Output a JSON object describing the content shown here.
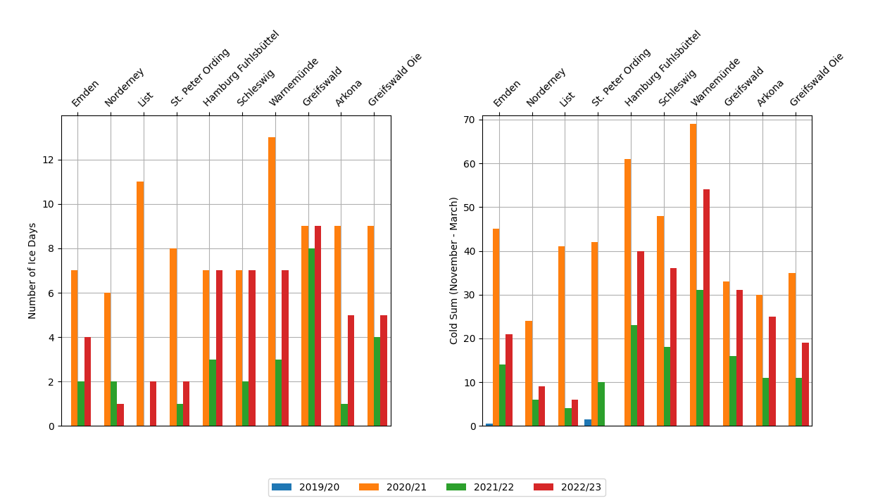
{
  "chart_data": [
    {
      "type": "bar",
      "categories": [
        "Emden",
        "Norderney",
        "List",
        "St. Peter Ording",
        "Hamburg Fuhlsbüttel",
        "Schleswig",
        "Warnemünde",
        "Greifswald",
        "Arkona",
        "Greifswald Oie"
      ],
      "series": [
        {
          "name": "2019/20",
          "values": [
            0,
            0,
            0,
            0,
            0,
            0,
            0,
            0,
            0,
            0
          ]
        },
        {
          "name": "2020/21",
          "values": [
            7,
            6,
            11,
            8,
            7,
            7,
            13,
            9,
            9,
            9
          ]
        },
        {
          "name": "2021/22",
          "values": [
            2,
            2,
            0,
            1,
            3,
            2,
            3,
            8,
            1,
            4
          ]
        },
        {
          "name": "2022/23",
          "values": [
            4,
            1,
            2,
            2,
            7,
            7,
            7,
            9,
            5,
            5
          ]
        }
      ],
      "ylabel": "Number of Ice Days",
      "ylim": [
        0,
        14
      ],
      "yticks": [
        0,
        2,
        4,
        6,
        8,
        10,
        12
      ],
      "grid": true,
      "legend": "lower center"
    },
    {
      "type": "bar",
      "categories": [
        "Emden",
        "Norderney",
        "List",
        "St. Peter Ording",
        "Hamburg Fuhlsbüttel",
        "Schleswig",
        "Warnemünde",
        "Greifswald",
        "Arkona",
        "Greifswald Oie"
      ],
      "series": [
        {
          "name": "2019/20",
          "values": [
            0.5,
            0,
            0,
            1.5,
            0,
            0,
            0,
            0,
            0,
            0
          ]
        },
        {
          "name": "2020/21",
          "values": [
            45,
            24,
            41,
            42,
            61,
            48,
            69,
            33,
            30,
            35
          ]
        },
        {
          "name": "2021/22",
          "values": [
            14,
            6,
            4,
            10,
            23,
            18,
            31,
            16,
            11,
            11
          ]
        },
        {
          "name": "2022/23",
          "values": [
            21,
            9,
            6,
            0,
            40,
            36,
            54,
            31,
            25,
            19
          ]
        }
      ],
      "ylabel": "Cold Sum (November - March)",
      "ylim": [
        0,
        71
      ],
      "yticks": [
        0,
        10,
        20,
        30,
        40,
        50,
        60,
        70
      ],
      "grid": true,
      "legend": "lower center"
    }
  ]
}
